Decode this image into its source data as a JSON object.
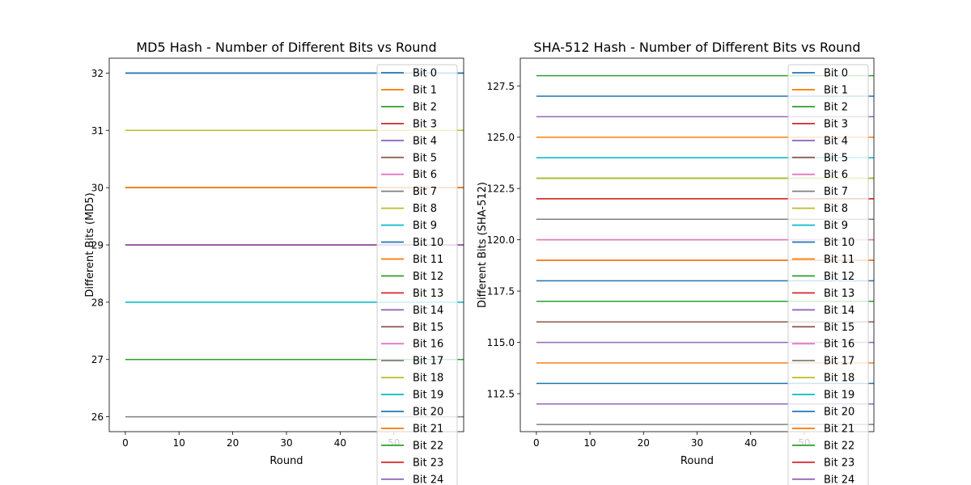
{
  "colors": [
    "#1f77b4",
    "#ff7f0e",
    "#2ca02c",
    "#d62728",
    "#9467bd",
    "#8c564b",
    "#e377c2",
    "#7f7f7f",
    "#bcbd22",
    "#17becf"
  ],
  "legend_labels": [
    "Bit 0",
    "Bit 1",
    "Bit 2",
    "Bit 3",
    "Bit 4",
    "Bit 5",
    "Bit 6",
    "Bit 7",
    "Bit 8",
    "Bit 9",
    "Bit 10",
    "Bit 11",
    "Bit 12",
    "Bit 13",
    "Bit 14",
    "Bit 15",
    "Bit 16",
    "Bit 17",
    "Bit 18",
    "Bit 19",
    "Bit 20",
    "Bit 21",
    "Bit 22",
    "Bit 23",
    "Bit 24"
  ],
  "chart_data": [
    {
      "type": "line",
      "title": "MD5 Hash - Number of Different Bits vs Round",
      "xlabel": "Round",
      "ylabel": "Different Bits (MD5)",
      "xlim": [
        -3,
        63
      ],
      "ylim": [
        25.74,
        32.26
      ],
      "xticks": [
        0,
        10,
        20,
        30,
        40,
        50
      ],
      "yticks": [
        26,
        27,
        28,
        29,
        30,
        31,
        32
      ],
      "ytick_labels": [
        "26",
        "27",
        "28",
        "29",
        "30",
        "31",
        "32"
      ],
      "x_range": [
        0,
        63
      ],
      "legend": "upper-right",
      "grid": false,
      "series": [
        {
          "name": "Bit 0",
          "y": 32
        },
        {
          "name": "Bit 1",
          "y": 30
        },
        {
          "name": "Bit 2",
          "y": 27
        },
        {
          "name": "Bit 3",
          "y": 31
        },
        {
          "name": "Bit 4",
          "y": 29
        },
        {
          "name": "Bit 5",
          "y": 30
        },
        {
          "name": "Bit 6",
          "y": 31
        },
        {
          "name": "Bit 7",
          "y": 26
        },
        {
          "name": "Bit 8",
          "y": 31
        },
        {
          "name": "Bit 9",
          "y": 28
        },
        {
          "name": "Bit 10",
          "y": 32
        },
        {
          "name": "Bit 11",
          "y": 30
        },
        {
          "name": "Bit 12",
          "y": 27
        },
        {
          "name": "Bit 13",
          "y": 29
        },
        {
          "name": "Bit 14",
          "y": 29
        },
        {
          "name": "Bit 15",
          "y": 30
        },
        {
          "name": "Bit 16",
          "y": 31
        },
        {
          "name": "Bit 17",
          "y": 32
        },
        {
          "name": "Bit 18",
          "y": 31
        },
        {
          "name": "Bit 19",
          "y": 28
        },
        {
          "name": "Bit 20",
          "y": 32
        },
        {
          "name": "Bit 21",
          "y": 30
        },
        {
          "name": "Bit 22",
          "y": 27
        },
        {
          "name": "Bit 23",
          "y": 29
        },
        {
          "name": "Bit 24",
          "y": 29
        }
      ]
    },
    {
      "type": "line",
      "title": "SHA-512 Hash - Number of Different Bits vs Round",
      "xlabel": "Round",
      "ylabel": "Different Bits (SHA-512)",
      "xlim": [
        -3,
        63
      ],
      "ylim": [
        110.65,
        128.85
      ],
      "xticks": [
        0,
        10,
        20,
        30,
        40,
        50
      ],
      "yticks": [
        112.5,
        115,
        117.5,
        120,
        122.5,
        125,
        127.5
      ],
      "ytick_labels": [
        "112.5",
        "115.0",
        "117.5",
        "120.0",
        "122.5",
        "125.0",
        "127.5"
      ],
      "x_range": [
        0,
        63
      ],
      "legend": "upper-right",
      "grid": false,
      "series": [
        {
          "name": "Bit 0",
          "y": 127
        },
        {
          "name": "Bit 1",
          "y": 125
        },
        {
          "name": "Bit 2",
          "y": 128
        },
        {
          "name": "Bit 3",
          "y": 122
        },
        {
          "name": "Bit 4",
          "y": 126
        },
        {
          "name": "Bit 5",
          "y": 121
        },
        {
          "name": "Bit 6",
          "y": 120
        },
        {
          "name": "Bit 7",
          "y": 111
        },
        {
          "name": "Bit 8",
          "y": 123
        },
        {
          "name": "Bit 9",
          "y": 124
        },
        {
          "name": "Bit 10",
          "y": 113
        },
        {
          "name": "Bit 11",
          "y": 114
        },
        {
          "name": "Bit 12",
          "y": 123
        },
        {
          "name": "Bit 13",
          "y": 119
        },
        {
          "name": "Bit 14",
          "y": 112
        },
        {
          "name": "Bit 15",
          "y": 116
        },
        {
          "name": "Bit 16",
          "y": 120
        },
        {
          "name": "Bit 17",
          "y": 121
        },
        {
          "name": "Bit 18",
          "y": 123
        },
        {
          "name": "Bit 19",
          "y": 124
        },
        {
          "name": "Bit 20",
          "y": 118
        },
        {
          "name": "Bit 21",
          "y": 119
        },
        {
          "name": "Bit 22",
          "y": 117
        },
        {
          "name": "Bit 23",
          "y": 122
        },
        {
          "name": "Bit 24",
          "y": 115
        }
      ]
    }
  ]
}
